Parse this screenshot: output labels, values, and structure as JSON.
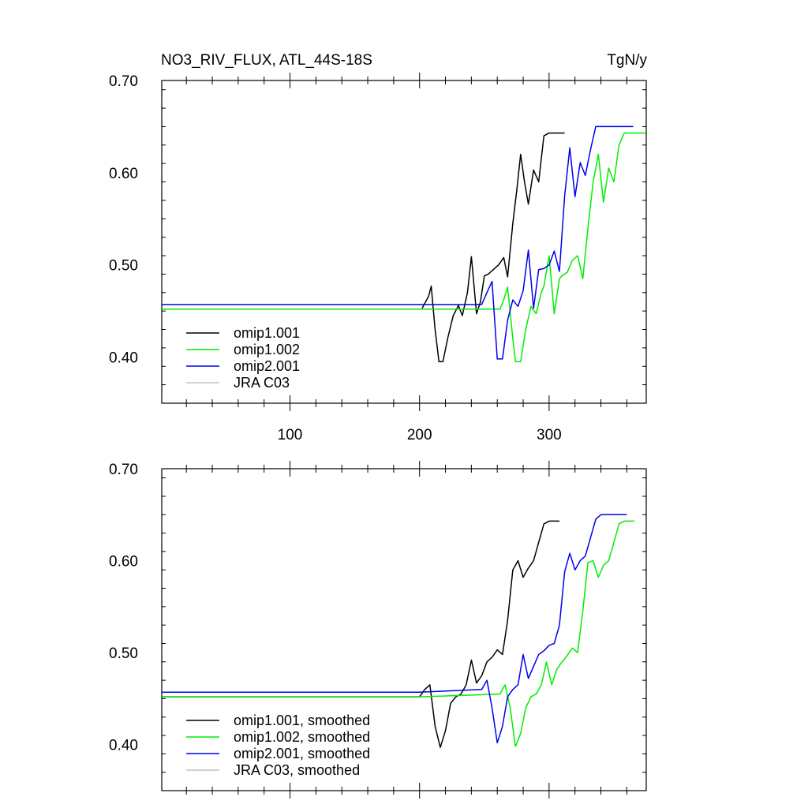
{
  "header": {
    "title": "NO3_RIV_FLUX, ATL_44S-18S",
    "units": "TgN/y"
  },
  "colors": {
    "omip1_001": "#000000",
    "omip1_002": "#00ee00",
    "omip2_001": "#0000ee",
    "jra_c03": "#c0c0c0"
  },
  "chart_data": [
    {
      "type": "line",
      "panel": "top",
      "xlim": [
        1,
        375
      ],
      "ylim": [
        0.35,
        0.7
      ],
      "xticks": [
        100,
        200,
        300
      ],
      "xtick_labels": [
        "100",
        "200",
        "300"
      ],
      "yticks": [
        0.4,
        0.5,
        0.6,
        0.7
      ],
      "ytick_labels": [
        "0.40",
        "0.50",
        "0.60",
        "0.70"
      ],
      "grid": false,
      "legend_position": "bottom-left",
      "series": [
        {
          "name": "omip1.001",
          "color": "#000000",
          "x": [
            202,
            207,
            209,
            212,
            215,
            218,
            222,
            226,
            230,
            233,
            237,
            240,
            244,
            247,
            250,
            253,
            257,
            261,
            265,
            268,
            272,
            275,
            278,
            281,
            284,
            288,
            292,
            296,
            300,
            304,
            308,
            312
          ],
          "y": [
            0.453,
            0.466,
            0.477,
            0.43,
            0.395,
            0.395,
            0.422,
            0.445,
            0.456,
            0.445,
            0.47,
            0.509,
            0.447,
            0.46,
            0.488,
            0.49,
            0.495,
            0.5,
            0.508,
            0.487,
            0.545,
            0.58,
            0.62,
            0.59,
            0.566,
            0.603,
            0.59,
            0.64,
            0.643,
            0.643,
            0.643,
            0.643
          ]
        },
        {
          "name": "omip1.002",
          "color": "#00ee00",
          "x": [
            1,
            100,
            200,
            262,
            265,
            268,
            272,
            274,
            278,
            282,
            286,
            290,
            294,
            296,
            300,
            304,
            308,
            310,
            314,
            318,
            322,
            326,
            330,
            334,
            338,
            342,
            346,
            350,
            354,
            358,
            362,
            366,
            370,
            375
          ],
          "y": [
            0.452,
            0.452,
            0.452,
            0.452,
            0.462,
            0.476,
            0.42,
            0.395,
            0.395,
            0.43,
            0.455,
            0.447,
            0.47,
            0.477,
            0.51,
            0.447,
            0.485,
            0.488,
            0.492,
            0.505,
            0.51,
            0.485,
            0.54,
            0.59,
            0.62,
            0.568,
            0.605,
            0.59,
            0.63,
            0.643,
            0.643,
            0.643,
            0.643,
            0.643
          ]
        },
        {
          "name": "omip2.001",
          "color": "#0000ee",
          "x": [
            1,
            100,
            200,
            248,
            252,
            256,
            260,
            264,
            268,
            272,
            276,
            280,
            284,
            288,
            292,
            296,
            300,
            304,
            308,
            312,
            316,
            320,
            324,
            328,
            332,
            336,
            340,
            344,
            348,
            352,
            356,
            360,
            365
          ],
          "y": [
            0.457,
            0.457,
            0.457,
            0.457,
            0.47,
            0.482,
            0.398,
            0.398,
            0.44,
            0.462,
            0.455,
            0.472,
            0.516,
            0.453,
            0.495,
            0.496,
            0.5,
            0.515,
            0.493,
            0.575,
            0.627,
            0.574,
            0.611,
            0.597,
            0.625,
            0.65,
            0.65,
            0.65,
            0.65,
            0.65,
            0.65,
            0.65,
            0.65
          ]
        },
        {
          "name": "JRA C03",
          "color": "#c0c0c0",
          "x": [],
          "y": []
        }
      ]
    },
    {
      "type": "line",
      "panel": "bottom",
      "xlim": [
        1,
        375
      ],
      "ylim": [
        0.35,
        0.7
      ],
      "xticks": [
        100,
        200,
        300
      ],
      "xtick_labels": [],
      "yticks": [
        0.4,
        0.5,
        0.6,
        0.7
      ],
      "ytick_labels": [
        "0.40",
        "0.50",
        "0.60",
        "0.70"
      ],
      "grid": false,
      "legend_position": "bottom-left",
      "series": [
        {
          "name": "omip1.001, smoothed",
          "color": "#000000",
          "x": [
            1,
            100,
            200,
            204,
            208,
            212,
            216,
            220,
            224,
            228,
            232,
            236,
            240,
            244,
            248,
            252,
            256,
            260,
            264,
            268,
            272,
            276,
            280,
            284,
            288,
            292,
            296,
            300,
            304,
            308
          ],
          "y": [
            0.452,
            0.452,
            0.452,
            0.46,
            0.465,
            0.42,
            0.397,
            0.415,
            0.445,
            0.452,
            0.455,
            0.465,
            0.492,
            0.467,
            0.475,
            0.49,
            0.495,
            0.503,
            0.498,
            0.535,
            0.59,
            0.6,
            0.582,
            0.592,
            0.6,
            0.62,
            0.64,
            0.643,
            0.643,
            0.643
          ]
        },
        {
          "name": "omip1.002, smoothed",
          "color": "#00ee00",
          "x": [
            1,
            100,
            200,
            262,
            266,
            270,
            274,
            278,
            282,
            286,
            290,
            294,
            298,
            302,
            306,
            310,
            314,
            318,
            322,
            326,
            330,
            334,
            338,
            342,
            346,
            350,
            354,
            358,
            362,
            366
          ],
          "y": [
            0.452,
            0.452,
            0.452,
            0.455,
            0.465,
            0.44,
            0.398,
            0.412,
            0.44,
            0.452,
            0.455,
            0.465,
            0.49,
            0.465,
            0.482,
            0.49,
            0.497,
            0.505,
            0.5,
            0.545,
            0.598,
            0.6,
            0.582,
            0.595,
            0.6,
            0.62,
            0.64,
            0.643,
            0.643,
            0.643
          ]
        },
        {
          "name": "omip2.001, smoothed",
          "color": "#0000ee",
          "x": [
            1,
            100,
            200,
            248,
            252,
            256,
            260,
            264,
            268,
            272,
            276,
            280,
            284,
            288,
            292,
            296,
            300,
            304,
            308,
            312,
            316,
            320,
            324,
            328,
            332,
            336,
            340,
            344,
            348,
            352,
            356,
            360
          ],
          "y": [
            0.457,
            0.457,
            0.457,
            0.46,
            0.47,
            0.44,
            0.402,
            0.42,
            0.452,
            0.46,
            0.465,
            0.498,
            0.472,
            0.485,
            0.498,
            0.502,
            0.508,
            0.51,
            0.53,
            0.588,
            0.608,
            0.59,
            0.6,
            0.605,
            0.625,
            0.645,
            0.65,
            0.65,
            0.65,
            0.65,
            0.65,
            0.65
          ]
        },
        {
          "name": "JRA C03, smoothed",
          "color": "#c0c0c0",
          "x": [],
          "y": []
        }
      ]
    }
  ]
}
